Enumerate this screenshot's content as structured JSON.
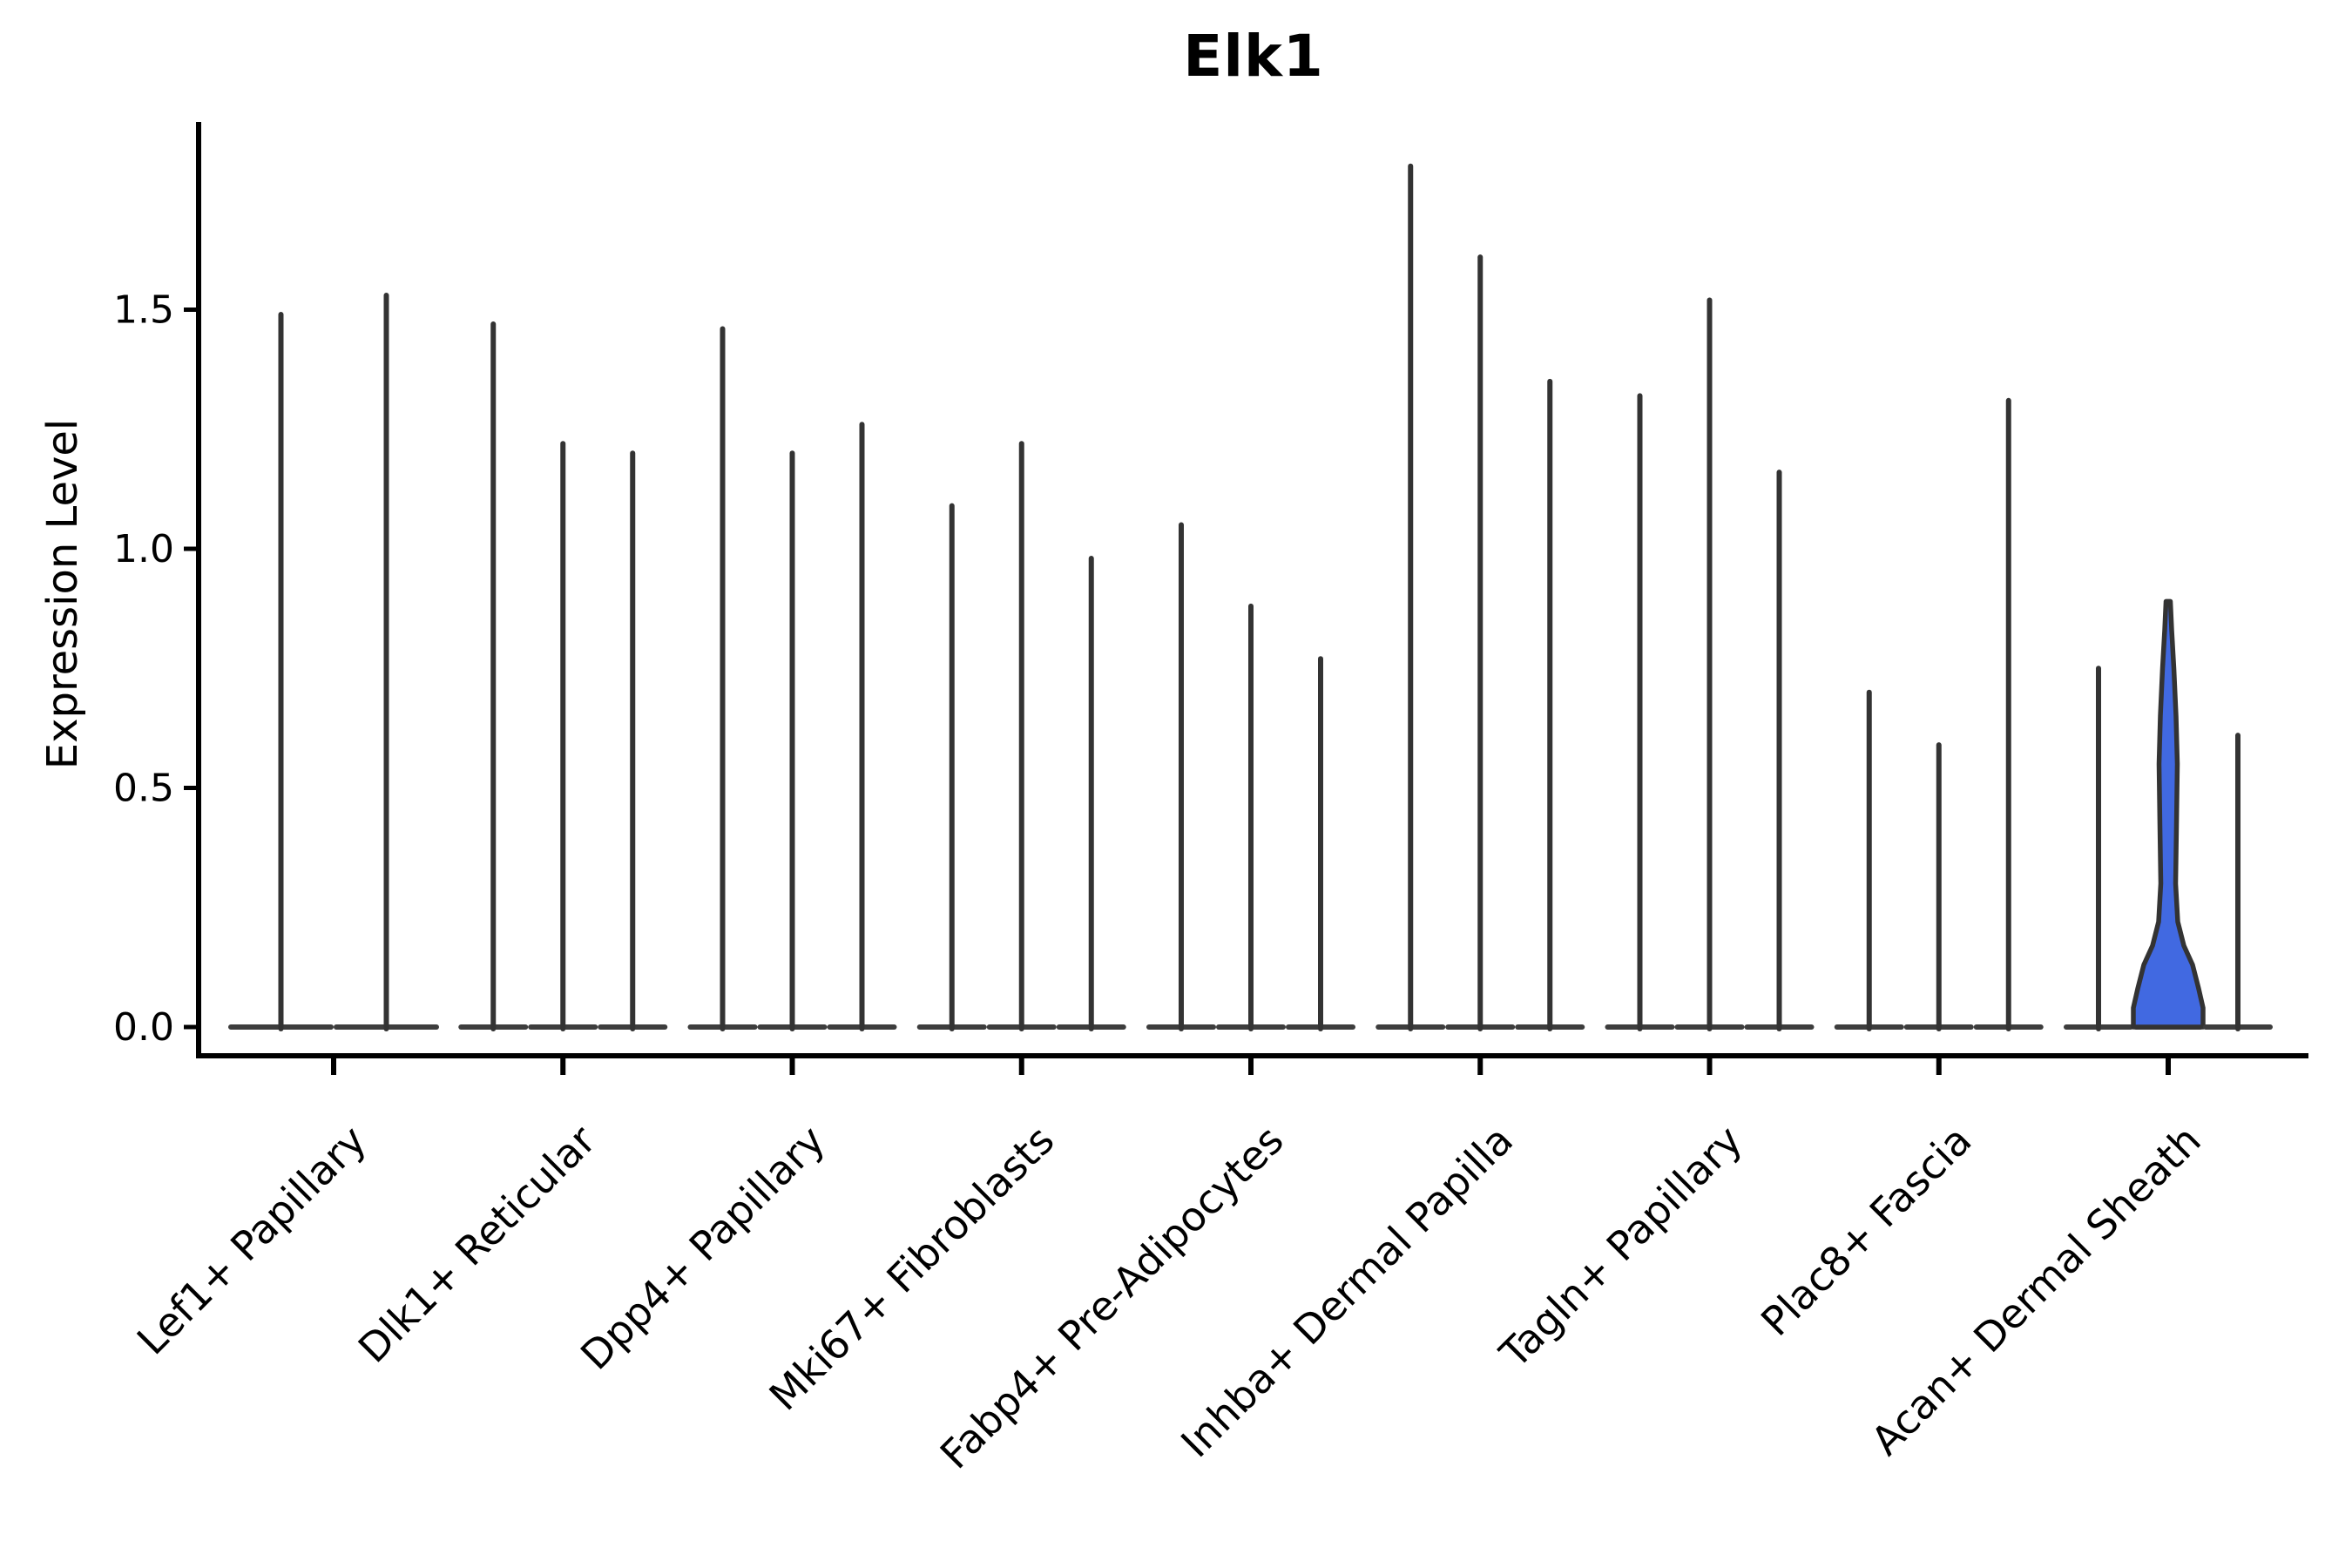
{
  "chart_data": {
    "type": "violin",
    "title": "Elk1",
    "ylabel": "Expression Level",
    "yticks": [
      0.0,
      0.5,
      1.0,
      1.5
    ],
    "ytick_labels": [
      "0.0",
      "0.5",
      "1.0",
      "1.5"
    ],
    "ylim": [
      -0.06,
      1.89
    ],
    "grid": false,
    "legend": false,
    "categories": [
      "Lef1+ Papillary",
      "Dlk1+ Reticular",
      "Dpp4+ Papillary",
      "Mki67+ Fibroblasts",
      "Fabp4+ Pre-Adipocytes",
      "Inhba+ Dermal Papilla",
      "Tagln+ Papillary",
      "Plac8+ Fascia",
      "Acan+ Dermal Sheath"
    ],
    "groups": [
      {
        "category": "Lef1+ Papillary",
        "violins": [
          {
            "max": 1.49
          },
          {
            "max": 1.53
          }
        ]
      },
      {
        "category": "Dlk1+ Reticular",
        "violins": [
          {
            "max": 1.47
          },
          {
            "max": 1.22
          },
          {
            "max": 1.2
          }
        ]
      },
      {
        "category": "Dpp4+ Papillary",
        "violins": [
          {
            "max": 1.46
          },
          {
            "max": 1.2
          },
          {
            "max": 1.26
          }
        ]
      },
      {
        "category": "Mki67+ Fibroblasts",
        "violins": [
          {
            "max": 1.09
          },
          {
            "max": 1.22
          },
          {
            "max": 0.98
          }
        ]
      },
      {
        "category": "Fabp4+ Pre-Adipocytes",
        "violins": [
          {
            "max": 1.05
          },
          {
            "max": 0.88
          },
          {
            "max": 0.77
          }
        ]
      },
      {
        "category": "Inhba+ Dermal Papilla",
        "violins": [
          {
            "max": 1.8
          },
          {
            "max": 1.61
          },
          {
            "max": 1.35
          }
        ]
      },
      {
        "category": "Tagln+ Papillary",
        "violins": [
          {
            "max": 1.32
          },
          {
            "max": 1.52
          },
          {
            "max": 1.16
          }
        ]
      },
      {
        "category": "Plac8+ Fascia",
        "violins": [
          {
            "max": 0.7
          },
          {
            "max": 0.59
          },
          {
            "max": 1.31
          }
        ]
      },
      {
        "category": "Acan+ Dermal Sheath",
        "violins": [
          {
            "max": 0.75
          },
          {
            "max": 0.89,
            "highlight": true
          },
          {
            "max": 0.61
          }
        ]
      }
    ],
    "highlight_violin": {
      "category": "Acan+ Dermal Sheath",
      "max": 0.89,
      "fill": "#4169E1",
      "profile": [
        [
          0.0,
          40
        ],
        [
          0.04,
          40
        ],
        [
          0.08,
          35
        ],
        [
          0.13,
          28
        ],
        [
          0.17,
          18
        ],
        [
          0.22,
          11
        ],
        [
          0.3,
          8.5
        ],
        [
          0.42,
          9.5
        ],
        [
          0.55,
          10.5
        ],
        [
          0.65,
          9
        ],
        [
          0.75,
          6.5
        ],
        [
          0.83,
          4
        ],
        [
          0.89,
          2.5
        ]
      ]
    },
    "colors": {
      "violin_stroke": "#333333",
      "baseline": "#3d3d3d",
      "axis": "#000000",
      "highlight_fill": "#4169E1",
      "background": "#ffffff"
    }
  }
}
